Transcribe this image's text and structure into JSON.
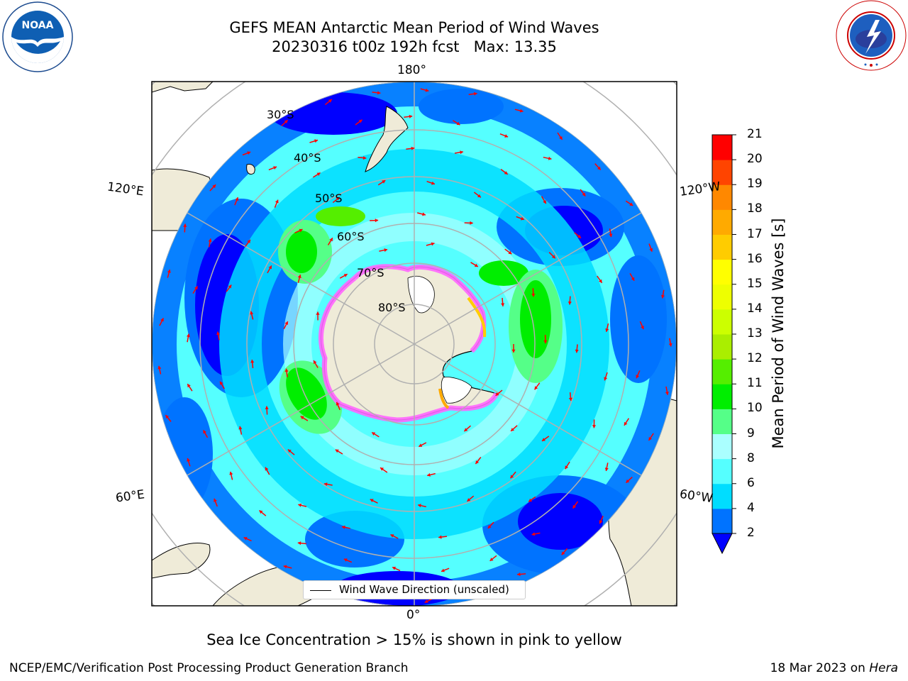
{
  "header": {
    "title_line1": "GEFS MEAN Antarctic Mean Period of Wind Waves",
    "title_line2": "20230316 t00z 192h fcst   Max: 13.35"
  },
  "logos": {
    "left": "noaa-logo",
    "left_text": "NOAA",
    "left_ring_text": "NATIONAL OCEANIC AND ATMOSPHERIC ADMINISTRATION · U.S. DEPARTMENT OF COMMERCE",
    "right": "national-weather-service-logo",
    "right_ring_text": "NATIONAL WEATHER SERVICE"
  },
  "map": {
    "projection": "south-polar-stereographic",
    "lon_labels": {
      "top": "180°",
      "bottom": "0°",
      "upper_left": "120°E",
      "upper_right": "120°W",
      "lower_left": "60°E",
      "lower_right": "60°W"
    },
    "lat_labels": [
      "30°S",
      "40°S",
      "50°S",
      "60°S",
      "70°S",
      "80°S"
    ],
    "legend_label": "Wind Wave Direction (unscaled)",
    "land_color": "#efebd8",
    "ice_color": "#ff66ff",
    "arrow_color": "#ff0000"
  },
  "colorbar": {
    "label": "Mean Period of Wind Waves [s]",
    "ticks": [
      "2",
      "4",
      "6",
      "8",
      "9",
      "10",
      "11",
      "12",
      "13",
      "14",
      "15",
      "16",
      "17",
      "18",
      "19",
      "20",
      "21"
    ],
    "colors": [
      "#0000ff",
      "#0073ff",
      "#00ddff",
      "#55ffff",
      "#aaffff",
      "#55ff88",
      "#00ee00",
      "#55ee00",
      "#aaee00",
      "#ccff00",
      "#eeff00",
      "#ffff00",
      "#ffcc00",
      "#ffaa00",
      "#ff8800",
      "#ff4400",
      "#ff0000"
    ],
    "extend": "min"
  },
  "note": "Sea Ice Concentration > 15% is shown in pink to yellow",
  "footer": {
    "left": "NCEP/EMC/Verification Post Processing Product Generation Branch",
    "right_date": "18 Mar 2023 on ",
    "right_host": "Hera"
  }
}
